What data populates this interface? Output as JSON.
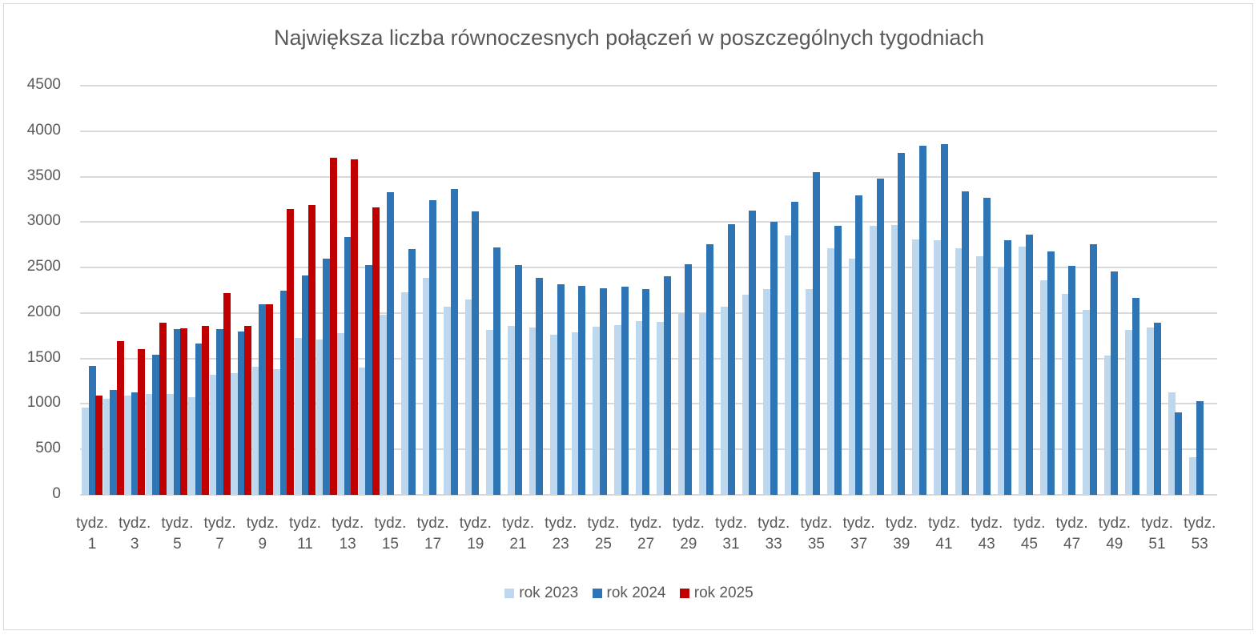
{
  "chart_data": {
    "type": "bar",
    "title": "Największa liczba równoczesnych połączeń w poszczególnych tygodniach",
    "xlabel": "",
    "ylabel": "",
    "ylim": [
      0,
      4500
    ],
    "yticks": [
      0,
      500,
      1000,
      1500,
      2000,
      2500,
      3000,
      3500,
      4000,
      4500
    ],
    "grid": true,
    "legend_position": "bottom",
    "categories": [
      "tydz. 1",
      "tydz. 2",
      "tydz. 3",
      "tydz. 4",
      "tydz. 5",
      "tydz. 6",
      "tydz. 7",
      "tydz. 8",
      "tydz. 9",
      "tydz. 10",
      "tydz. 11",
      "tydz. 12",
      "tydz. 13",
      "tydz. 14",
      "tydz. 15",
      "tydz. 16",
      "tydz. 17",
      "tydz. 18",
      "tydz. 19",
      "tydz. 20",
      "tydz. 21",
      "tydz. 22",
      "tydz. 23",
      "tydz. 24",
      "tydz. 25",
      "tydz. 26",
      "tydz. 27",
      "tydz. 28",
      "tydz. 29",
      "tydz. 30",
      "tydz. 31",
      "tydz. 32",
      "tydz. 33",
      "tydz. 34",
      "tydz. 35",
      "tydz. 36",
      "tydz. 37",
      "tydz. 38",
      "tydz. 39",
      "tydz. 40",
      "tydz. 41",
      "tydz. 42",
      "tydz. 43",
      "tydz. 44",
      "tydz. 45",
      "tydz. 46",
      "tydz. 47",
      "tydz. 48",
      "tydz. 49",
      "tydz. 50",
      "tydz. 51",
      "tydz. 52",
      "tydz. 53"
    ],
    "visible_tick_labels": [
      "tydz. 1",
      "tydz. 3",
      "tydz. 5",
      "tydz. 7",
      "tydz. 9",
      "tydz. 11",
      "tydz. 13",
      "tydz. 15",
      "tydz. 17",
      "tydz. 19",
      "tydz. 21",
      "tydz. 23",
      "tydz. 25",
      "tydz. 27",
      "tydz. 29",
      "tydz. 31",
      "tydz. 33",
      "tydz. 35",
      "tydz. 37",
      "tydz. 39",
      "tydz. 41",
      "tydz. 43",
      "tydz. 45",
      "tydz. 47",
      "tydz. 49",
      "tydz. 51",
      "tydz. 53"
    ],
    "series": [
      {
        "name": "rok 2023",
        "color": "#bdd7ee",
        "values": [
          960,
          1060,
          1090,
          1110,
          1110,
          1070,
          1320,
          1340,
          1410,
          1380,
          1730,
          1710,
          1780,
          1400,
          1980,
          2230,
          2390,
          2070,
          2150,
          1810,
          1860,
          1840,
          1760,
          1790,
          1850,
          1870,
          1910,
          1900,
          2000,
          2000,
          2070,
          2200,
          2260,
          2850,
          2260,
          2710,
          2600,
          2960,
          2970,
          2810,
          2800,
          2710,
          2620,
          2500,
          2730,
          2360,
          2210,
          2030,
          1530,
          1810,
          1840,
          1130,
          410
        ]
      },
      {
        "name": "rok 2024",
        "color": "#2e75b6",
        "values": [
          1420,
          1150,
          1130,
          1540,
          1820,
          1660,
          1820,
          1800,
          2100,
          2250,
          2410,
          2600,
          2840,
          2530,
          3330,
          2700,
          3240,
          3360,
          3120,
          2720,
          2530,
          2390,
          2320,
          2300,
          2270,
          2290,
          2260,
          2400,
          2540,
          2760,
          2980,
          3130,
          3000,
          3220,
          3550,
          2960,
          3290,
          3480,
          3760,
          3840,
          3860,
          3340,
          3270,
          2800,
          2860,
          2680,
          2520,
          2760,
          2460,
          2170,
          1890,
          910,
          1030
        ]
      },
      {
        "name": "rok 2025",
        "color": "#c00000",
        "values": [
          1090,
          1690,
          1600,
          1890,
          1830,
          1860,
          2220,
          1860,
          2100,
          3140,
          3190,
          3710,
          3690,
          3160
        ]
      }
    ]
  },
  "legend": {
    "items": [
      {
        "label": "rok 2023",
        "color": "#bdd7ee"
      },
      {
        "label": "rok 2024",
        "color": "#2e75b6"
      },
      {
        "label": "rok 2025",
        "color": "#c00000"
      }
    ]
  }
}
